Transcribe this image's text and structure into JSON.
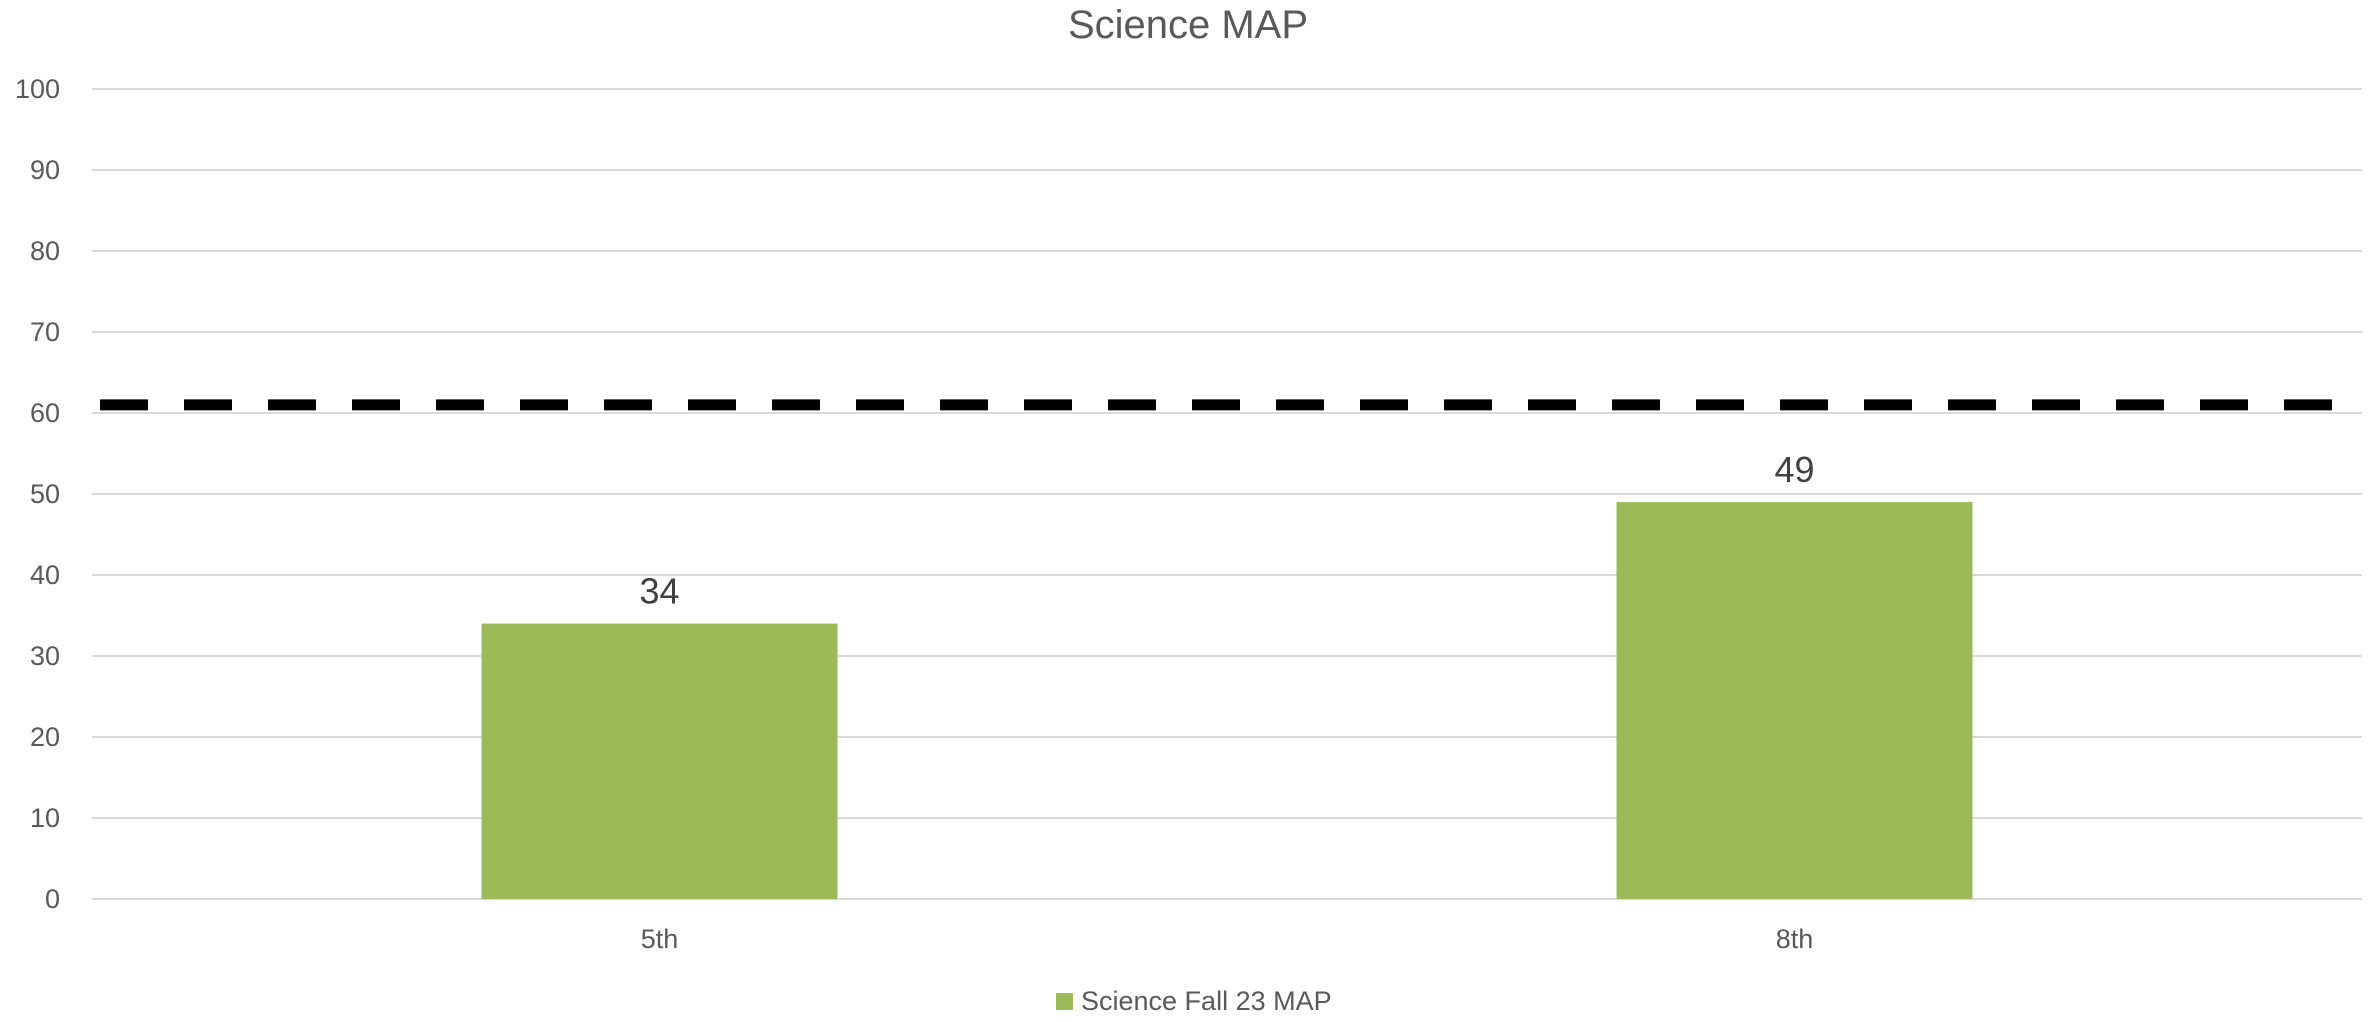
{
  "chart_data": {
    "type": "bar",
    "title": "Science MAP",
    "xlabel": "",
    "ylabel": "",
    "categories": [
      "5th",
      "8th"
    ],
    "series": [
      {
        "name": "Science Fall 23 MAP",
        "values": [
          34,
          49
        ],
        "color": "#9bbb59"
      }
    ],
    "data_labels": [
      "34",
      "49"
    ],
    "ylim": [
      0,
      100
    ],
    "yticks": [
      0,
      10,
      20,
      30,
      40,
      50,
      60,
      70,
      80,
      90,
      100
    ],
    "reference_line": {
      "value": 61,
      "style": "dashed",
      "color": "#000000"
    },
    "grid": true,
    "legend": "bottom"
  }
}
